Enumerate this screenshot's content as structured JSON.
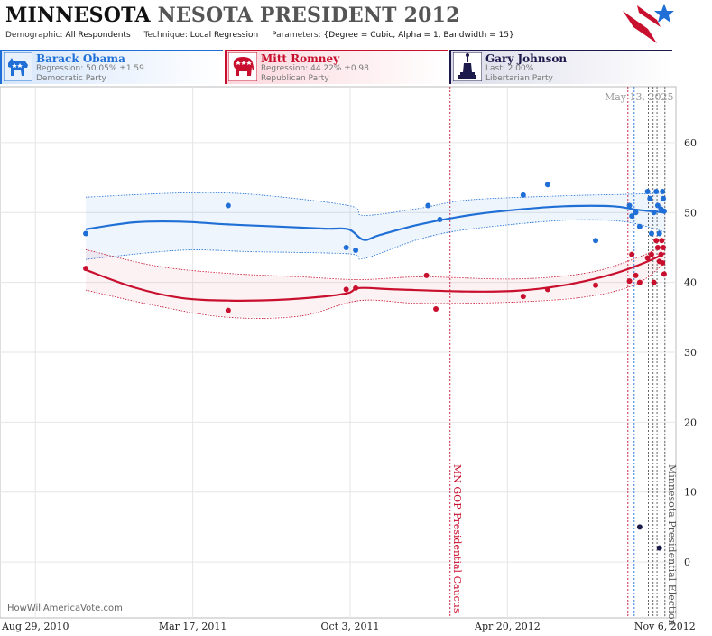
{
  "header": {
    "title_part1": "MINNESOTA",
    "title_part2": "NESOTA PRESIDENT 2012",
    "demographic_label": "Demographic:",
    "demographic_value": "All Respondents",
    "technique_label": "Technique:",
    "technique_value": "Local Regression",
    "parameters_label": "Parameters:",
    "parameters_value": "{Degree = Cubic, Alpha = 1, Bandwidth = 15}",
    "logo_icon": "stars-stripes-logo-icon"
  },
  "candidates": [
    {
      "name": "Barack Obama",
      "stat": "Regression: 50.05% ±1.59",
      "party": "Democratic Party",
      "color": "#1f6fd6",
      "icon": "donkey-icon"
    },
    {
      "name": "Mitt Romney",
      "stat": "Regression: 44.22% ±0.98",
      "party": "Republican Party",
      "color": "#c8102e",
      "icon": "elephant-icon"
    },
    {
      "name": "Gary Johnson",
      "stat": "Last: 2.00%",
      "party": "Libertarian Party",
      "color": "#1b1a4a",
      "icon": "statue-of-liberty-icon"
    }
  ],
  "date_stamp": "May 13, 2025",
  "credit": "HowWillAmericaVote.com",
  "chart_data": {
    "type": "line",
    "x_axis": {
      "type": "date",
      "range": [
        "2010-07-15",
        "2012-11-20"
      ],
      "tick_labels": [
        "Aug 29, 2010",
        "Mar 17, 2011",
        "Oct 3, 2011",
        "Apr 20, 2012",
        "Nov 6, 2012"
      ],
      "tick_dates": [
        "2010-08-29",
        "2011-03-17",
        "2011-10-03",
        "2012-04-20",
        "2012-11-06"
      ]
    },
    "y_axis": {
      "range": [
        -8,
        68
      ],
      "ticks": [
        0,
        10,
        20,
        30,
        40,
        50,
        60
      ],
      "position": "right"
    },
    "grid": true,
    "series": [
      {
        "name": "Barack Obama",
        "color": "#1f6fd6",
        "band_color": "rgba(31,111,214,0.07)",
        "trend": [
          [
            "2010-11-01",
            47.6
          ],
          [
            "2011-01-01",
            48.6
          ],
          [
            "2011-03-01",
            48.7
          ],
          [
            "2011-05-01",
            48.3
          ],
          [
            "2011-07-01",
            48.0
          ],
          [
            "2011-09-01",
            47.7
          ],
          [
            "2011-10-01",
            47.6
          ],
          [
            "2011-10-20",
            46.1
          ],
          [
            "2011-11-10",
            46.8
          ],
          [
            "2011-12-30",
            48.3
          ],
          [
            "2012-03-01",
            49.6
          ],
          [
            "2012-05-01",
            50.4
          ],
          [
            "2012-07-01",
            50.9
          ],
          [
            "2012-09-01",
            50.9
          ],
          [
            "2012-10-01",
            50.4
          ],
          [
            "2012-11-06",
            50.0
          ]
        ],
        "upper": [
          [
            "2010-11-01",
            52.2
          ],
          [
            "2011-03-01",
            52.8
          ],
          [
            "2011-06-01",
            52.6
          ],
          [
            "2011-10-01",
            51.0
          ],
          [
            "2011-10-20",
            49.6
          ],
          [
            "2011-12-30",
            50.6
          ],
          [
            "2012-03-01",
            51.8
          ],
          [
            "2012-07-01",
            52.4
          ],
          [
            "2012-09-15",
            52.6
          ],
          [
            "2012-11-06",
            52.8
          ]
        ],
        "lower": [
          [
            "2010-11-01",
            43.3
          ],
          [
            "2011-03-01",
            44.6
          ],
          [
            "2011-06-01",
            44.4
          ],
          [
            "2011-10-01",
            44.1
          ],
          [
            "2011-10-20",
            43.4
          ],
          [
            "2011-12-30",
            46.2
          ],
          [
            "2012-03-01",
            47.6
          ],
          [
            "2012-07-01",
            48.9
          ],
          [
            "2012-09-15",
            48.7
          ],
          [
            "2012-11-06",
            47.2
          ]
        ],
        "points": [
          [
            "2010-11-01",
            47
          ],
          [
            "2011-05-01",
            51
          ],
          [
            "2011-09-28",
            45
          ],
          [
            "2011-10-10",
            44.6
          ],
          [
            "2012-01-10",
            51
          ],
          [
            "2012-01-25",
            49
          ],
          [
            "2012-05-10",
            52.5
          ],
          [
            "2012-06-10",
            54
          ],
          [
            "2012-08-10",
            46
          ],
          [
            "2012-09-22",
            51
          ],
          [
            "2012-09-25",
            49.5
          ],
          [
            "2012-09-30",
            50
          ],
          [
            "2012-10-05",
            48
          ],
          [
            "2012-10-15",
            53
          ],
          [
            "2012-10-18",
            52
          ],
          [
            "2012-10-20",
            47
          ],
          [
            "2012-10-23",
            50
          ],
          [
            "2012-10-26",
            53
          ],
          [
            "2012-10-28",
            51
          ],
          [
            "2012-10-30",
            47
          ],
          [
            "2012-11-01",
            50.5
          ],
          [
            "2012-11-03",
            53
          ],
          [
            "2012-11-04",
            52
          ],
          [
            "2012-11-05",
            50.2
          ]
        ]
      },
      {
        "name": "Mitt Romney",
        "color": "#c8102e",
        "band_color": "rgba(200,16,46,0.06)",
        "trend": [
          [
            "2010-11-01",
            41.8
          ],
          [
            "2011-01-01",
            39.3
          ],
          [
            "2011-03-01",
            37.8
          ],
          [
            "2011-05-01",
            37.4
          ],
          [
            "2011-07-01",
            37.5
          ],
          [
            "2011-09-01",
            38.0
          ],
          [
            "2011-10-01",
            38.5
          ],
          [
            "2011-10-15",
            39.2
          ],
          [
            "2011-12-01",
            39.0
          ],
          [
            "2012-03-01",
            38.7
          ],
          [
            "2012-05-01",
            38.8
          ],
          [
            "2012-07-01",
            39.6
          ],
          [
            "2012-09-01",
            41.2
          ],
          [
            "2012-10-15",
            43.0
          ],
          [
            "2012-11-06",
            44.2
          ]
        ],
        "upper": [
          [
            "2010-11-01",
            44.7
          ],
          [
            "2011-02-01",
            42.3
          ],
          [
            "2011-05-01",
            41.3
          ],
          [
            "2011-08-01",
            40.8
          ],
          [
            "2011-10-15",
            40.4
          ],
          [
            "2012-01-01",
            40.8
          ],
          [
            "2012-05-01",
            40.5
          ],
          [
            "2012-08-01",
            41.4
          ],
          [
            "2012-10-01",
            43.5
          ],
          [
            "2012-11-06",
            45.4
          ]
        ],
        "lower": [
          [
            "2010-11-01",
            38.9
          ],
          [
            "2011-02-01",
            36.6
          ],
          [
            "2011-05-01",
            35.0
          ],
          [
            "2011-08-01",
            35.2
          ],
          [
            "2011-10-15",
            37.4
          ],
          [
            "2012-01-01",
            37.0
          ],
          [
            "2012-05-01",
            37.2
          ],
          [
            "2012-08-01",
            38.0
          ],
          [
            "2012-10-01",
            39.8
          ],
          [
            "2012-11-06",
            42.8
          ]
        ],
        "points": [
          [
            "2010-11-01",
            42
          ],
          [
            "2011-05-01",
            36
          ],
          [
            "2011-09-28",
            39
          ],
          [
            "2011-10-10",
            39.2
          ],
          [
            "2012-01-08",
            41
          ],
          [
            "2012-01-20",
            36.2
          ],
          [
            "2012-05-10",
            38
          ],
          [
            "2012-06-10",
            39
          ],
          [
            "2012-08-10",
            39.6
          ],
          [
            "2012-09-22",
            40.2
          ],
          [
            "2012-09-25",
            44
          ],
          [
            "2012-09-30",
            41
          ],
          [
            "2012-10-05",
            40
          ],
          [
            "2012-10-15",
            43.5
          ],
          [
            "2012-10-20",
            44
          ],
          [
            "2012-10-23",
            40
          ],
          [
            "2012-10-26",
            46
          ],
          [
            "2012-10-28",
            45
          ],
          [
            "2012-10-30",
            43
          ],
          [
            "2012-11-01",
            44
          ],
          [
            "2012-11-02",
            46
          ],
          [
            "2012-11-03",
            42.8
          ],
          [
            "2012-11-04",
            45
          ],
          [
            "2012-11-05",
            41.2
          ]
        ]
      },
      {
        "name": "Gary Johnson",
        "color": "#1b1a4a",
        "points": [
          [
            "2012-10-05",
            5
          ],
          [
            "2012-10-30",
            2
          ]
        ]
      }
    ],
    "vertical_lines": [
      {
        "date": "2012-02-07",
        "color": "#c8102e",
        "label": "MN GOP Presidential Caucus"
      },
      {
        "date": "2012-09-20",
        "color": "#c8102e",
        "label": ""
      },
      {
        "date": "2012-09-28",
        "color": "#1f6fd6",
        "label": ""
      },
      {
        "date": "2012-10-16",
        "color": "#555555",
        "label": ""
      },
      {
        "date": "2012-10-22",
        "color": "#555555",
        "label": ""
      },
      {
        "date": "2012-10-27",
        "color": "#555555",
        "label": ""
      },
      {
        "date": "2012-11-01",
        "color": "#555555",
        "label": ""
      },
      {
        "date": "2012-11-06",
        "color": "#555555",
        "label": "Minnesota Presidential Election"
      }
    ]
  }
}
